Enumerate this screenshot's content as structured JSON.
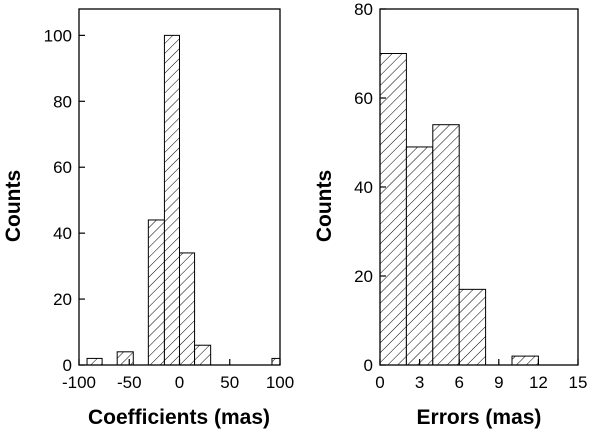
{
  "chart_data": [
    {
      "type": "bar",
      "xlabel": "Coefficients (mas)",
      "ylabel": "Counts",
      "xlim": [
        -100,
        100
      ],
      "ylim": [
        0,
        108
      ],
      "xticks": [
        -100,
        -50,
        0,
        50,
        100
      ],
      "xtick_labels": [
        "-100",
        "-50",
        "0",
        "50",
        "100"
      ],
      "yticks": [
        0,
        20,
        40,
        60,
        80,
        100
      ],
      "ytick_labels": [
        "0",
        "20",
        "40",
        "60",
        "80",
        "100"
      ],
      "bins": [
        {
          "x0": -92,
          "x1": -77,
          "value": 2
        },
        {
          "x0": -62,
          "x1": -46,
          "value": 4
        },
        {
          "x0": -46,
          "x1": -31,
          "value": 0
        },
        {
          "x0": -31,
          "x1": -15,
          "value": 44
        },
        {
          "x0": -15,
          "x1": 0,
          "value": 100
        },
        {
          "x0": 0,
          "x1": 15,
          "value": 34
        },
        {
          "x0": 15,
          "x1": 31,
          "value": 6
        },
        {
          "x0": 92,
          "x1": 108,
          "value": 2
        }
      ],
      "fill": "hatched",
      "grid": false
    },
    {
      "type": "bar",
      "xlabel": "Errors (mas)",
      "ylabel": "Counts",
      "xlim": [
        0,
        15
      ],
      "ylim": [
        0,
        80
      ],
      "xticks": [
        0,
        3,
        6,
        9,
        12,
        15
      ],
      "xtick_labels": [
        "0",
        "3",
        "6",
        "9",
        "12",
        "15"
      ],
      "yticks": [
        0,
        20,
        40,
        60,
        80
      ],
      "ytick_labels": [
        "0",
        "20",
        "40",
        "60",
        "80"
      ],
      "bins": [
        {
          "x0": 0,
          "x1": 2,
          "value": 70
        },
        {
          "x0": 2,
          "x1": 4,
          "value": 49
        },
        {
          "x0": 4,
          "x1": 6,
          "value": 54
        },
        {
          "x0": 6,
          "x1": 8,
          "value": 17
        },
        {
          "x0": 10,
          "x1": 12,
          "value": 2
        }
      ],
      "fill": "hatched",
      "grid": false
    }
  ]
}
